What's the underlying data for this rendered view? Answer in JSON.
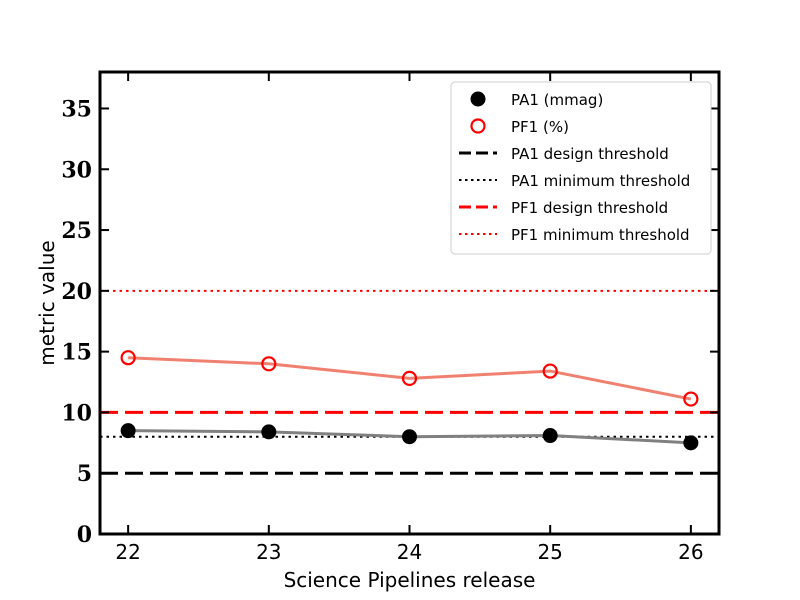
{
  "chart_data": {
    "type": "line",
    "xlabel": "Science Pipelines release",
    "ylabel": "metric value",
    "xlim": [
      21.8,
      26.2
    ],
    "ylim": [
      0,
      38
    ],
    "x_ticks": [
      "22",
      "23",
      "24",
      "25",
      "26"
    ],
    "y_ticks": [
      "0",
      "5",
      "10",
      "15",
      "20",
      "25",
      "30",
      "35"
    ],
    "x": [
      22,
      23,
      24,
      25,
      26
    ],
    "series": [
      {
        "name": "PA1 (mmag)",
        "values": [
          8.5,
          8.4,
          8.0,
          8.1,
          7.5
        ],
        "marker": "filled-circle",
        "marker_color": "#000000",
        "line_color": "#808080"
      },
      {
        "name": "PF1 (%)",
        "values": [
          14.5,
          14.0,
          12.8,
          13.4,
          11.1
        ],
        "marker": "open-circle",
        "marker_color": "#ff0000",
        "line_color": "#f08070"
      }
    ],
    "thresholds": [
      {
        "name": "PA1 design threshold",
        "value": 5,
        "color": "#000000",
        "style": "dashed"
      },
      {
        "name": "PA1 minimum threshold",
        "value": 8,
        "color": "#000000",
        "style": "dotted"
      },
      {
        "name": "PF1 design threshold",
        "value": 10,
        "color": "#ff0000",
        "style": "dashed"
      },
      {
        "name": "PF1 minimum threshold",
        "value": 20,
        "color": "#ff0000",
        "style": "dotted"
      }
    ],
    "legend_position": "top-right",
    "grid": false
  }
}
